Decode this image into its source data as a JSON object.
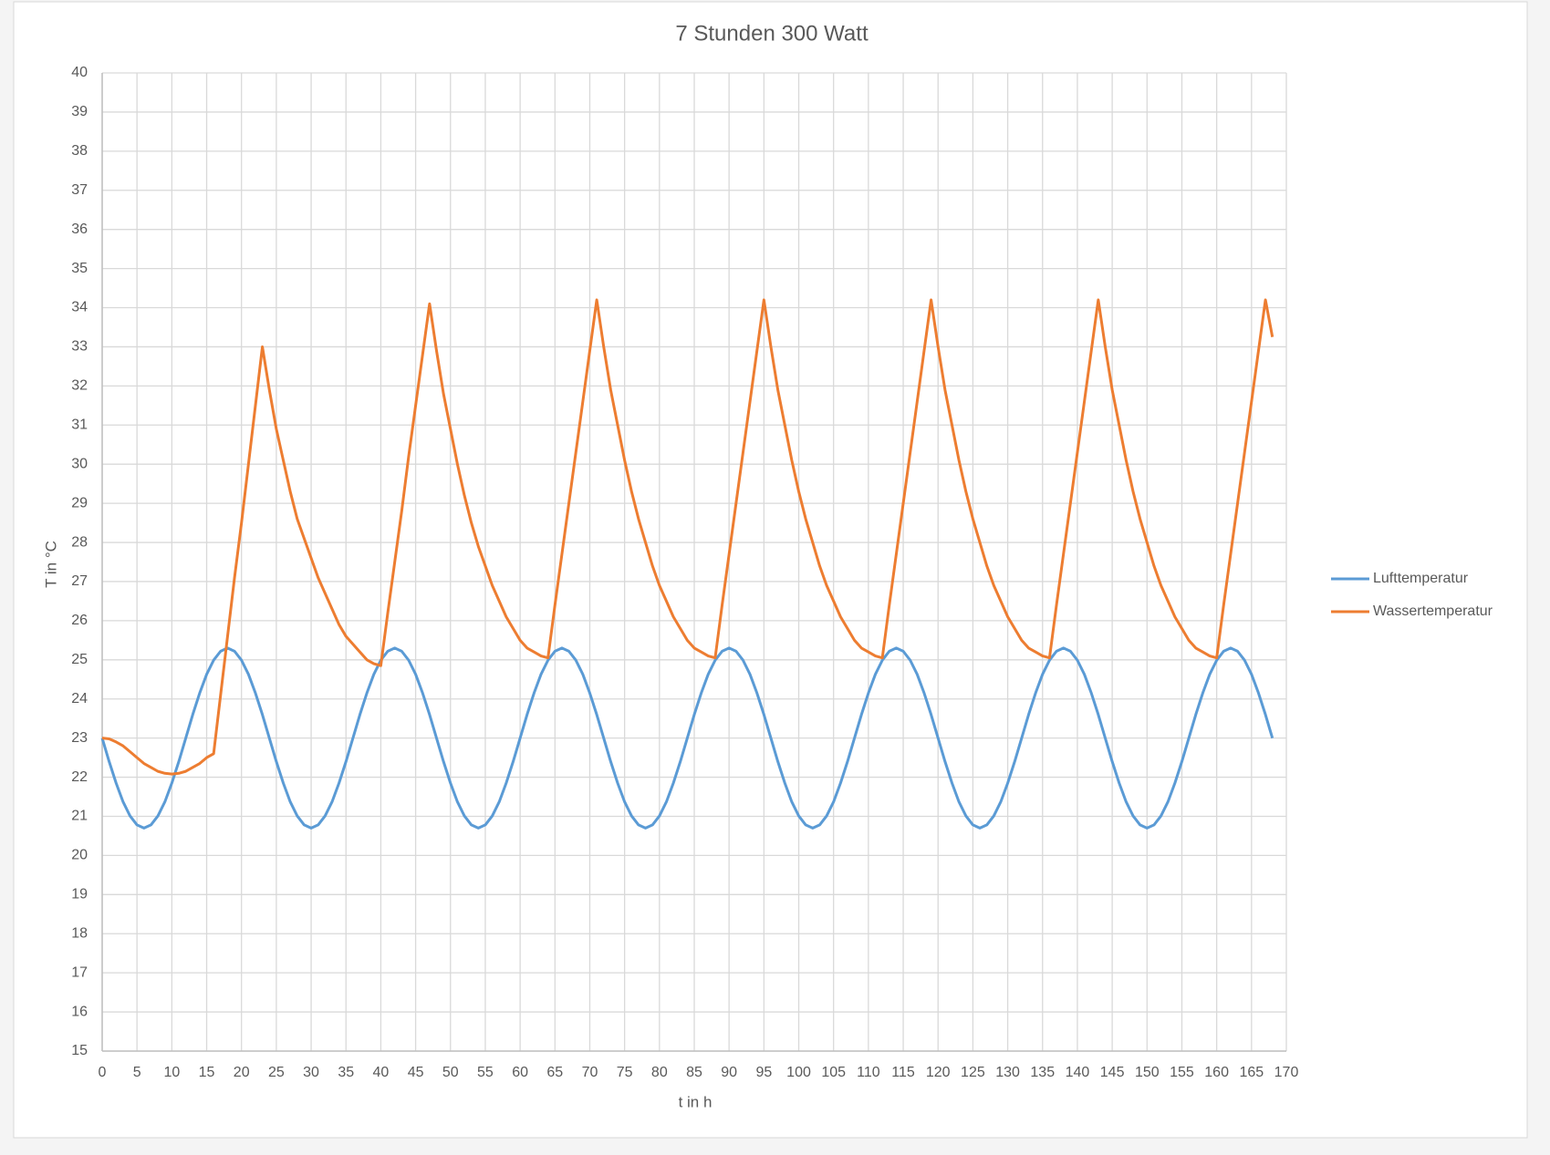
{
  "chart_data": {
    "type": "line",
    "title": "7 Stunden 300 Watt",
    "x_label": "t in h",
    "y_label": "T in °C",
    "x": [
      0,
      1,
      2,
      3,
      4,
      5,
      6,
      7,
      8,
      9,
      10,
      11,
      12,
      13,
      14,
      15,
      16,
      17,
      18,
      19,
      20,
      21,
      22,
      23,
      24,
      25,
      26,
      27,
      28,
      29,
      30,
      31,
      32,
      33,
      34,
      35,
      36,
      37,
      38,
      39,
      40,
      41,
      42,
      43,
      44,
      45,
      46,
      47,
      48,
      49,
      50,
      51,
      52,
      53,
      54,
      55,
      56,
      57,
      58,
      59,
      60,
      61,
      62,
      63,
      64,
      65,
      66,
      67,
      68,
      69,
      70,
      71,
      72,
      73,
      74,
      75,
      76,
      77,
      78,
      79,
      80,
      81,
      82,
      83,
      84,
      85,
      86,
      87,
      88,
      89,
      90,
      91,
      92,
      93,
      94,
      95,
      96,
      97,
      98,
      99,
      100,
      101,
      102,
      103,
      104,
      105,
      106,
      107,
      108,
      109,
      110,
      111,
      112,
      113,
      114,
      115,
      116,
      117,
      118,
      119,
      120,
      121,
      122,
      123,
      124,
      125,
      126,
      127,
      128,
      129,
      130,
      131,
      132,
      133,
      134,
      135,
      136,
      137,
      138,
      139,
      140,
      141,
      142,
      143,
      144,
      145,
      146,
      147,
      148,
      149,
      150,
      151,
      152,
      153,
      154,
      155,
      156,
      157,
      158,
      159,
      160,
      161,
      162,
      163,
      164,
      165,
      166,
      167,
      168
    ],
    "series": [
      {
        "name": "Lufttemperatur",
        "color": "#5b9bd5",
        "values": [
          23,
          22.4,
          21.85,
          21.37,
          21.01,
          20.78,
          20.7,
          20.78,
          21.01,
          21.37,
          21.85,
          22.4,
          23,
          23.6,
          24.15,
          24.63,
          24.99,
          25.22,
          25.3,
          25.22,
          24.99,
          24.63,
          24.15,
          23.6,
          23,
          22.4,
          21.85,
          21.37,
          21.01,
          20.78,
          20.7,
          20.78,
          21.01,
          21.37,
          21.85,
          22.4,
          23,
          23.6,
          24.15,
          24.63,
          24.99,
          25.22,
          25.3,
          25.22,
          24.99,
          24.63,
          24.15,
          23.6,
          23,
          22.4,
          21.85,
          21.37,
          21.01,
          20.78,
          20.7,
          20.78,
          21.01,
          21.37,
          21.85,
          22.4,
          23,
          23.6,
          24.15,
          24.63,
          24.99,
          25.22,
          25.3,
          25.22,
          24.99,
          24.63,
          24.15,
          23.6,
          23,
          22.4,
          21.85,
          21.37,
          21.01,
          20.78,
          20.7,
          20.78,
          21.01,
          21.37,
          21.85,
          22.4,
          23,
          23.6,
          24.15,
          24.63,
          24.99,
          25.22,
          25.3,
          25.22,
          24.99,
          24.63,
          24.15,
          23.6,
          23,
          22.4,
          21.85,
          21.37,
          21.01,
          20.78,
          20.7,
          20.78,
          21.01,
          21.37,
          21.85,
          22.4,
          23,
          23.6,
          24.15,
          24.63,
          24.99,
          25.22,
          25.3,
          25.22,
          24.99,
          24.63,
          24.15,
          23.6,
          23,
          22.4,
          21.85,
          21.37,
          21.01,
          20.78,
          20.7,
          20.78,
          21.01,
          21.37,
          21.85,
          22.4,
          23,
          23.6,
          24.15,
          24.63,
          24.99,
          25.22,
          25.3,
          25.22,
          24.99,
          24.63,
          24.15,
          23.6,
          23,
          22.4,
          21.85,
          21.37,
          21.01,
          20.78,
          20.7,
          20.78,
          21.01,
          21.37,
          21.85,
          22.4,
          23,
          23.6,
          24.15,
          24.63,
          24.99,
          25.22,
          25.3,
          25.22,
          24.99,
          24.63,
          24.15,
          23.6,
          23
        ]
      },
      {
        "name": "Wassertemperatur",
        "color": "#ed7d31",
        "values": [
          23,
          22.98,
          22.9,
          22.8,
          22.65,
          22.5,
          22.35,
          22.25,
          22.15,
          22.1,
          22.08,
          22.1,
          22.15,
          22.25,
          22.35,
          22.5,
          22.6,
          24.1,
          25.6,
          27.1,
          28.5,
          30.0,
          31.5,
          33.0,
          31.9,
          30.9,
          30.1,
          29.3,
          28.6,
          28.1,
          27.6,
          27.1,
          26.7,
          26.3,
          25.9,
          25.6,
          25.4,
          25.2,
          25.0,
          24.9,
          24.85,
          26.2,
          27.5,
          28.8,
          30.2,
          31.5,
          32.8,
          34.1,
          32.9,
          31.8,
          30.9,
          30.0,
          29.2,
          28.5,
          27.9,
          27.4,
          26.9,
          26.5,
          26.1,
          25.8,
          25.5,
          25.3,
          25.2,
          25.1,
          25.05,
          26.4,
          27.7,
          29.0,
          30.3,
          31.6,
          32.9,
          34.2,
          33.0,
          31.9,
          31.0,
          30.1,
          29.3,
          28.6,
          28.0,
          27.4,
          26.9,
          26.5,
          26.1,
          25.8,
          25.5,
          25.3,
          25.2,
          25.1,
          25.05,
          26.4,
          27.7,
          29.0,
          30.3,
          31.6,
          32.9,
          34.2,
          33.0,
          31.9,
          31.0,
          30.1,
          29.3,
          28.6,
          28.0,
          27.4,
          26.9,
          26.5,
          26.1,
          25.8,
          25.5,
          25.3,
          25.2,
          25.1,
          25.05,
          26.4,
          27.7,
          29.0,
          30.3,
          31.6,
          32.9,
          34.2,
          33.0,
          31.9,
          31.0,
          30.1,
          29.3,
          28.6,
          28.0,
          27.4,
          26.9,
          26.5,
          26.1,
          25.8,
          25.5,
          25.3,
          25.2,
          25.1,
          25.05,
          26.4,
          27.7,
          29.0,
          30.3,
          31.6,
          32.9,
          34.2,
          33.0,
          31.9,
          31.0,
          30.1,
          29.3,
          28.6,
          28.0,
          27.4,
          26.9,
          26.5,
          26.1,
          25.8,
          25.5,
          25.3,
          25.2,
          25.1,
          25.05,
          26.4,
          27.7,
          29.0,
          30.3,
          31.6,
          32.9,
          34.2,
          33.25
        ]
      }
    ],
    "xlim": [
      0,
      170
    ],
    "xticks": [
      0,
      5,
      10,
      15,
      20,
      25,
      30,
      35,
      40,
      45,
      50,
      55,
      60,
      65,
      70,
      75,
      80,
      85,
      90,
      95,
      100,
      105,
      110,
      115,
      120,
      125,
      130,
      135,
      140,
      145,
      150,
      155,
      160,
      165,
      170
    ],
    "ylim": [
      15,
      40
    ],
    "yticks": [
      15,
      16,
      17,
      18,
      19,
      20,
      21,
      22,
      23,
      24,
      25,
      26,
      27,
      28,
      29,
      30,
      31,
      32,
      33,
      34,
      35,
      36,
      37,
      38,
      39,
      40
    ],
    "grid": true,
    "legend": "right"
  }
}
